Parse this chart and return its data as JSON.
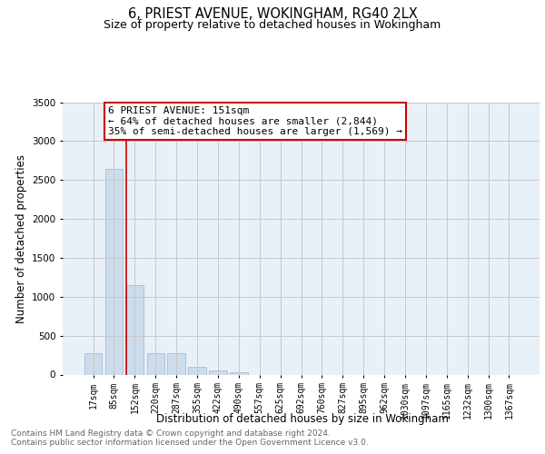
{
  "title": "6, PRIEST AVENUE, WOKINGHAM, RG40 2LX",
  "subtitle": "Size of property relative to detached houses in Wokingham",
  "xlabel": "Distribution of detached houses by size in Wokingham",
  "ylabel": "Number of detached properties",
  "footnote1": "Contains HM Land Registry data © Crown copyright and database right 2024.",
  "footnote2": "Contains public sector information licensed under the Open Government Licence v3.0.",
  "categories": [
    "17sqm",
    "85sqm",
    "152sqm",
    "220sqm",
    "287sqm",
    "355sqm",
    "422sqm",
    "490sqm",
    "557sqm",
    "625sqm",
    "692sqm",
    "760sqm",
    "827sqm",
    "895sqm",
    "962sqm",
    "1030sqm",
    "1097sqm",
    "1165sqm",
    "1232sqm",
    "1300sqm",
    "1367sqm"
  ],
  "values": [
    270,
    2640,
    1150,
    280,
    280,
    95,
    55,
    35,
    0,
    0,
    0,
    0,
    0,
    0,
    0,
    0,
    0,
    0,
    0,
    0,
    0
  ],
  "bar_color": "#ccdcec",
  "bar_edge_color": "#aabccc",
  "annotation_title": "6 PRIEST AVENUE: 151sqm",
  "annotation_line1": "← 64% of detached houses are smaller (2,844)",
  "annotation_line2": "35% of semi-detached houses are larger (1,569) →",
  "annotation_box_color": "#ffffff",
  "annotation_box_edge": "#cc0000",
  "red_line_color": "#cc0000",
  "ylim": [
    0,
    3500
  ],
  "yticks": [
    0,
    500,
    1000,
    1500,
    2000,
    2500,
    3000,
    3500
  ],
  "grid_color": "#c8c8c8",
  "bg_color": "#e8f0f8",
  "title_fontsize": 10.5,
  "subtitle_fontsize": 9,
  "axis_label_fontsize": 8.5,
  "tick_fontsize": 7,
  "annotation_fontsize": 8,
  "footnote_fontsize": 6.5
}
